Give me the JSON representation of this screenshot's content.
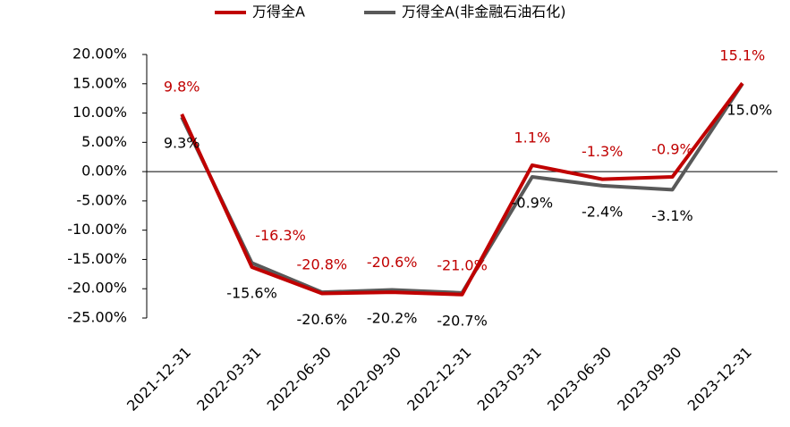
{
  "chart_data": {
    "type": "line",
    "categories": [
      "2021-12-31",
      "2022-03-31",
      "2022-06-30",
      "2022-09-30",
      "2022-12-31",
      "2023-03-31",
      "2023-06-30",
      "2023-09-30",
      "2023-12-31"
    ],
    "series": [
      {
        "name": "万得全A",
        "color": "#c00000",
        "values": [
          9.8,
          -16.3,
          -20.8,
          -20.6,
          -21.0,
          1.1,
          -1.3,
          -0.9,
          15.1
        ],
        "value_labels": [
          "9.8%",
          "-16.3%",
          "-20.8%",
          "-20.6%",
          "-21.0%",
          "1.1%",
          "-1.3%",
          "-0.9%",
          "15.1%"
        ]
      },
      {
        "name": "万得全A(非金融石油石化)",
        "color": "#595959",
        "values": [
          9.3,
          -15.6,
          -20.6,
          -20.2,
          -20.7,
          -0.9,
          -2.4,
          -3.1,
          15.0
        ],
        "value_labels": [
          "9.3%",
          "-15.6%",
          "-20.6%",
          "-20.2%",
          "-20.7%",
          "-0.9%",
          "-2.4%",
          "-3.1%",
          "15.0%"
        ]
      }
    ],
    "ylim": [
      -25,
      20
    ],
    "yticks": [
      {
        "value": 20,
        "label": "20.00%"
      },
      {
        "value": 15,
        "label": "15.00%"
      },
      {
        "value": 10,
        "label": "10.00%"
      },
      {
        "value": 5,
        "label": "5.00%"
      },
      {
        "value": 0,
        "label": "0.00%"
      },
      {
        "value": -5,
        "label": "-5.00%"
      },
      {
        "value": -10,
        "label": "-10.00%"
      },
      {
        "value": -15,
        "label": "-15.00%"
      },
      {
        "value": -20,
        "label": "-20.00%"
      },
      {
        "value": -25,
        "label": "-25.00%"
      }
    ],
    "legend": "top",
    "grid": false
  }
}
